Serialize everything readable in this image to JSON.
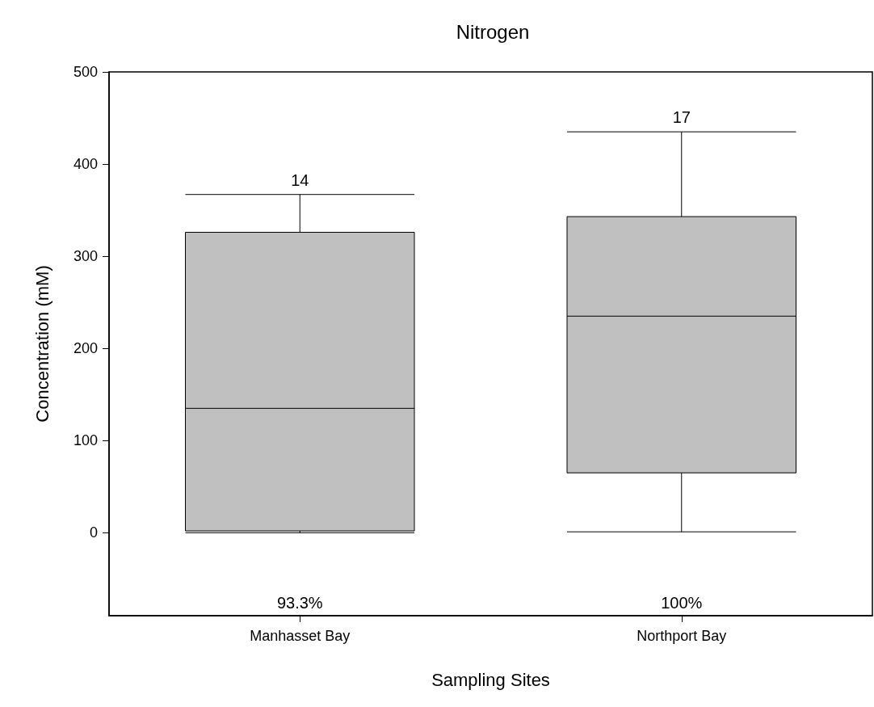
{
  "chart_data": {
    "type": "box",
    "title": "Nitrogen",
    "xlabel": "Sampling Sites",
    "ylabel": "Concentration (mM)",
    "categories": [
      "Manhasset Bay",
      "Northport Bay"
    ],
    "series": [
      {
        "color": "#c0c0c0",
        "boxes": [
          {
            "low": 0,
            "q1": 2,
            "median": 135,
            "q3": 326,
            "high": 367
          },
          {
            "low": 1,
            "q1": 65,
            "median": 235,
            "q3": 343,
            "high": 435
          }
        ]
      }
    ],
    "ylim": [
      -90,
      500
    ],
    "yticks": [
      0,
      100,
      200,
      300,
      400,
      500
    ],
    "annotations": [
      {
        "text": "14",
        "x": "Manhasset Bay",
        "y": 367
      },
      {
        "text": "17",
        "x": "Northport Bay",
        "y": 435
      },
      "93.3%",
      "100%"
    ]
  }
}
